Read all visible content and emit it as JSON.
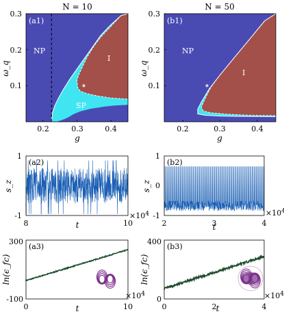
{
  "chart_data": [
    {
      "id": "a1",
      "type": "heatmap",
      "panel_label": "(a1)",
      "title": "N = 10",
      "xlabel": "g",
      "ylabel": "ω_q",
      "xlim": [
        0.15,
        0.45
      ],
      "ylim": [
        0.0,
        0.3
      ],
      "xticks": [
        "0.2",
        "0.3",
        "0.4"
      ],
      "yticks": [
        "0.1",
        "0.2",
        "0.3"
      ],
      "regions": [
        {
          "name": "NP",
          "color": "#4a4ab3"
        },
        {
          "name": "SP",
          "color": "#3fe6f2"
        },
        {
          "name": "I",
          "color": "#a3504a"
        }
      ],
      "vline_g": 0.225,
      "marker": {
        "g": 0.32,
        "omega_q": 0.1
      },
      "np_boundary": [
        [
          0.225,
          0.0
        ],
        [
          0.24,
          0.0
        ],
        [
          0.25,
          0.003
        ],
        [
          0.262,
          0.007
        ],
        [
          0.275,
          0.013
        ],
        [
          0.29,
          0.021
        ],
        [
          0.31,
          0.029
        ],
        [
          0.34,
          0.036
        ],
        [
          0.38,
          0.042
        ],
        [
          0.41,
          0.045
        ],
        [
          0.45,
          0.047
        ]
      ],
      "sp_np_boundary": [
        [
          0.45,
          0.3
        ],
        [
          0.43,
          0.295
        ],
        [
          0.4,
          0.27
        ],
        [
          0.37,
          0.24
        ],
        [
          0.34,
          0.2
        ],
        [
          0.31,
          0.16
        ],
        [
          0.28,
          0.12
        ],
        [
          0.26,
          0.09
        ],
        [
          0.245,
          0.065
        ],
        [
          0.235,
          0.045
        ],
        [
          0.228,
          0.025
        ],
        [
          0.225,
          0.0
        ]
      ],
      "i_boundary": [
        [
          0.45,
          0.3
        ],
        [
          0.43,
          0.295
        ],
        [
          0.41,
          0.275
        ],
        [
          0.39,
          0.255
        ],
        [
          0.37,
          0.235
        ],
        [
          0.35,
          0.21
        ],
        [
          0.33,
          0.18
        ],
        [
          0.315,
          0.15
        ],
        [
          0.305,
          0.13
        ],
        [
          0.3,
          0.115
        ],
        [
          0.302,
          0.095
        ],
        [
          0.31,
          0.085
        ],
        [
          0.33,
          0.078
        ],
        [
          0.36,
          0.072
        ],
        [
          0.4,
          0.066
        ],
        [
          0.45,
          0.063
        ]
      ]
    },
    {
      "id": "b1",
      "type": "heatmap",
      "panel_label": "(b1)",
      "title": "N = 50",
      "xlabel": "g",
      "ylabel": "ω_q",
      "xlim": [
        0.15,
        0.45
      ],
      "ylim": [
        0.0,
        0.3
      ],
      "xticks": [
        "0.2",
        "0.3",
        "0.4"
      ],
      "yticks": [
        "0.1",
        "0.2",
        "0.3"
      ],
      "regions": [
        {
          "name": "NP",
          "color": "#4a4ab3"
        },
        {
          "name": "I",
          "color": "#a3504a"
        }
      ],
      "marker": {
        "g": 0.265,
        "omega_q": 0.1
      },
      "sp_np_boundary": [
        [
          0.45,
          0.3
        ],
        [
          0.42,
          0.28
        ],
        [
          0.38,
          0.23
        ],
        [
          0.34,
          0.18
        ],
        [
          0.3,
          0.13
        ],
        [
          0.27,
          0.09
        ],
        [
          0.25,
          0.055
        ],
        [
          0.24,
          0.035
        ],
        [
          0.24,
          0.022
        ],
        [
          0.26,
          0.018
        ],
        [
          0.3,
          0.016
        ],
        [
          0.35,
          0.015
        ],
        [
          0.45,
          0.014
        ]
      ],
      "i_boundary": [
        [
          0.45,
          0.3
        ],
        [
          0.42,
          0.28
        ],
        [
          0.38,
          0.23
        ],
        [
          0.34,
          0.18
        ],
        [
          0.3,
          0.13
        ],
        [
          0.275,
          0.095
        ],
        [
          0.258,
          0.06
        ],
        [
          0.25,
          0.04
        ],
        [
          0.255,
          0.03
        ],
        [
          0.275,
          0.025
        ],
        [
          0.32,
          0.021
        ],
        [
          0.38,
          0.018
        ],
        [
          0.45,
          0.017
        ]
      ]
    },
    {
      "id": "a2",
      "type": "line",
      "panel_label": "(a2)",
      "xlabel": "t",
      "ylabel": "s_z",
      "xlim": [
        8,
        10
      ],
      "ylim": [
        -1,
        1
      ],
      "xticks": [
        "8",
        "10"
      ],
      "yticks": [
        "-1",
        "1"
      ],
      "x_multiplier": "×10",
      "x_multiplier_exp": "4",
      "color": "#1a5fb4",
      "band": [
        -0.6,
        0.6
      ],
      "spikes": 150,
      "seed": 11
    },
    {
      "id": "b2",
      "type": "line",
      "panel_label": "(b2)",
      "xlabel": "t",
      "ylabel": "s_z",
      "xlim": [
        2,
        4
      ],
      "ylim": [
        -1,
        1
      ],
      "xticks": [
        "2",
        "3",
        "4"
      ],
      "yticks": [
        "-1",
        "0",
        "1"
      ],
      "x_multiplier": "×10",
      "x_multiplier_exp": "4",
      "color": "#1a5fb4",
      "band": [
        -0.85,
        0.65
      ],
      "spikes": 95,
      "seed": 29
    },
    {
      "id": "a3",
      "type": "line",
      "panel_label": "(a3)",
      "xlabel": "t",
      "ylabel": "ln(ϵ_fc)",
      "xlim": [
        0,
        10
      ],
      "ylim": [
        -100,
        300
      ],
      "xticks": [
        "0",
        "10"
      ],
      "yticks": [
        "-100",
        "300"
      ],
      "x_multiplier": "×10",
      "x_multiplier_exp": "4",
      "color": "#1f4d2e",
      "start": 25,
      "end": 235,
      "noise": 3,
      "inset_color": "#7b2f8a"
    },
    {
      "id": "b3",
      "type": "line",
      "panel_label": "(b3)",
      "xlabel": "t",
      "ylabel": "ln(ϵ_fc)",
      "xlim": [
        0,
        4
      ],
      "ylim": [
        0,
        400
      ],
      "xticks": [
        "0",
        "2",
        "4"
      ],
      "yticks": [
        "0",
        "400"
      ],
      "x_multiplier": "×10",
      "x_multiplier_exp": "4",
      "color": "#1f4d2e",
      "start": 70,
      "end": 290,
      "noise": 7,
      "inset_color": "#7b2f8a"
    }
  ]
}
